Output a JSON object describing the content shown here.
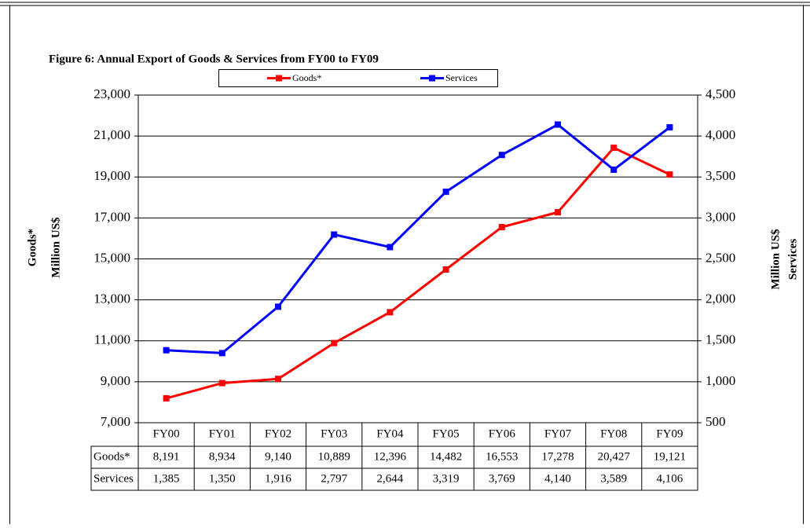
{
  "chart_data": {
    "type": "line",
    "title": "Figure 6: Annual Export of Goods & Services from FY00 to FY09",
    "ylabel": [
      "Goods*",
      "Million US$"
    ],
    "y2label": [
      "Million US$",
      "Services"
    ],
    "categories": [
      "FY00",
      "FY01",
      "FY02",
      "FY03",
      "FY04",
      "FY05",
      "FY06",
      "FY07",
      "FY08",
      "FY09"
    ],
    "series": [
      {
        "name": "Goods*",
        "color": "#ff0000",
        "values": [
          8191,
          8934,
          9140,
          10889,
          12396,
          14482,
          16553,
          17278,
          20427,
          19121
        ],
        "value_labels": [
          "8,191",
          "8,934",
          "9,140",
          "10,889",
          "12,396",
          "14,482",
          "16,553",
          "17,278",
          "20,427",
          "19,121"
        ]
      },
      {
        "name": "Services",
        "color": "#0000ff",
        "axis": "y2",
        "values": [
          1385,
          1350,
          1916,
          2797,
          2644,
          3319,
          3769,
          4140,
          3589,
          4106
        ],
        "value_labels": [
          "1,385",
          "1,350",
          "1,916",
          "2,797",
          "2,644",
          "3,319",
          "3,769",
          "4,140",
          "3,589",
          "4,106"
        ]
      }
    ],
    "ylim": [
      7000,
      23000
    ],
    "yticks": [
      {
        "value": 7000,
        "label": "7,000"
      },
      {
        "value": 9000,
        "label": "9,000"
      },
      {
        "value": 11000,
        "label": "11,000"
      },
      {
        "value": 13000,
        "label": "13,000"
      },
      {
        "value": 15000,
        "label": "15,000"
      },
      {
        "value": 17000,
        "label": "17,000"
      },
      {
        "value": 19000,
        "label": "19,000"
      },
      {
        "value": 21000,
        "label": "21,000"
      },
      {
        "value": 23000,
        "label": "23,000"
      }
    ],
    "y2lim": [
      500,
      4500
    ],
    "y2ticks": [
      500,
      {
        "value": 1000,
        "label": "1,000"
      },
      {
        "value": 1500,
        "label": "1,500"
      },
      {
        "value": 2000,
        "label": "2,000"
      },
      {
        "value": 2500,
        "label": "2,500"
      },
      {
        "value": 3000,
        "label": "3,000"
      },
      {
        "value": 3500,
        "label": "3,500"
      },
      {
        "value": 4000,
        "label": "4,000"
      },
      {
        "value": 4500,
        "label": "4,500"
      }
    ],
    "grid": true,
    "legend": "top"
  }
}
